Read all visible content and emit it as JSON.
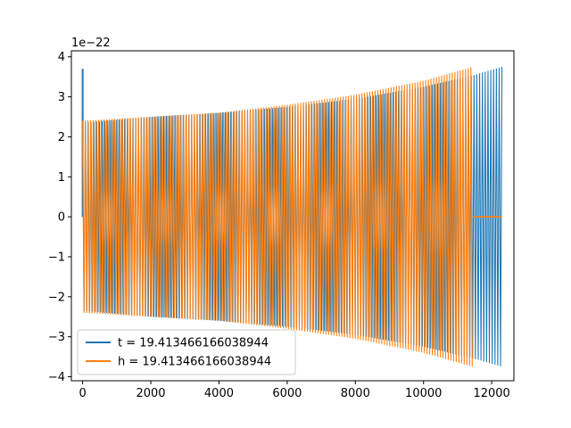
{
  "chart_data": {
    "type": "line",
    "title": "",
    "xlabel": "",
    "ylabel": "",
    "y_offset_label": "1e−22",
    "xlim": [
      -330,
      12650
    ],
    "ylim": [
      -4.1,
      4.15
    ],
    "xticks": [
      0,
      2000,
      4000,
      6000,
      8000,
      10000,
      12000
    ],
    "xtick_labels": [
      "0",
      "2000",
      "4000",
      "6000",
      "8000",
      "10000",
      "12000"
    ],
    "yticks": [
      -4,
      -3,
      -2,
      -1,
      0,
      1,
      2,
      3,
      4
    ],
    "ytick_labels": [
      "−4",
      "−3",
      "−2",
      "−1",
      "0",
      "1",
      "2",
      "3",
      "4"
    ],
    "grid": false,
    "legend_position": "lower-left",
    "series": [
      {
        "name": "t = 19.413466166038944",
        "color": "#1f77b4",
        "x_start": 0,
        "x_end": 12300,
        "spike_max": 3.7,
        "envelope": [
          {
            "x": 0,
            "amp": 2.35
          },
          {
            "x": 2000,
            "amp": 2.5
          },
          {
            "x": 4000,
            "amp": 2.6
          },
          {
            "x": 6000,
            "amp": 2.75
          },
          {
            "x": 8000,
            "amp": 2.95
          },
          {
            "x": 10000,
            "amp": 3.25
          },
          {
            "x": 11500,
            "amp": 3.55
          },
          {
            "x": 12300,
            "amp": 3.75
          }
        ]
      },
      {
        "name": "h = 19.413466166038944",
        "color": "#ff7f0e",
        "x_start": 0,
        "x_end": 11450,
        "flat_until": 12300,
        "envelope": [
          {
            "x": 0,
            "amp": 2.4
          },
          {
            "x": 2000,
            "amp": 2.5
          },
          {
            "x": 4000,
            "amp": 2.6
          },
          {
            "x": 6000,
            "amp": 2.8
          },
          {
            "x": 8000,
            "amp": 3.05
          },
          {
            "x": 10000,
            "amp": 3.4
          },
          {
            "x": 11450,
            "amp": 3.75
          }
        ]
      }
    ]
  }
}
